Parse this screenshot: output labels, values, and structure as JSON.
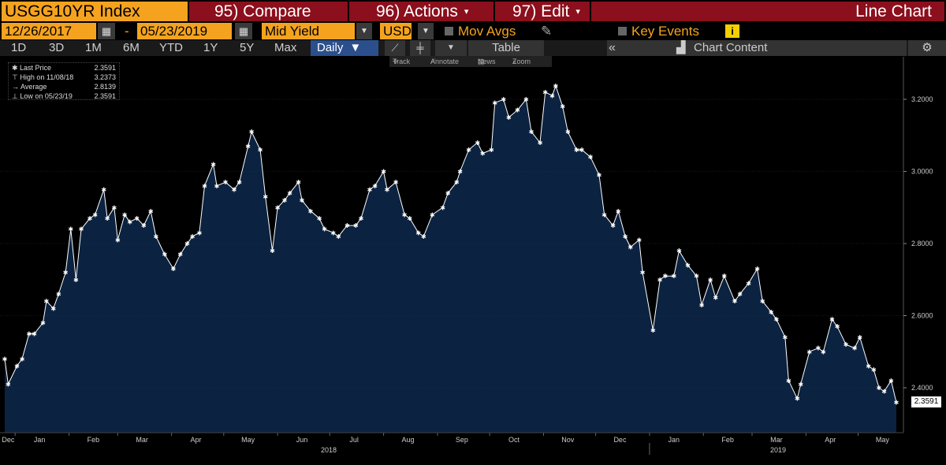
{
  "header": {
    "ticker": "USGG10YR Index",
    "compare_label": "95) Compare",
    "actions_label": "96) Actions",
    "edit_label": "97) Edit",
    "chart_type_label": "Line Chart"
  },
  "controls": {
    "start_date": "12/26/2017",
    "date_separator": "-",
    "end_date": "05/23/2019",
    "field": "Mid Yield",
    "currency": "USD",
    "mov_avgs_label": "Mov Avgs",
    "key_events_label": "Key Events",
    "info_icon_label": "i"
  },
  "periods": [
    "1D",
    "3D",
    "1M",
    "6M",
    "YTD",
    "1Y",
    "5Y",
    "Max"
  ],
  "frequency": "Daily",
  "toolbar": {
    "table_label": "Table",
    "chart_content_label": "Chart Content",
    "track_label": "Track",
    "annotate_label": "Annotate",
    "news_label": "News",
    "zoom_label": "Zoom"
  },
  "legend": {
    "last_price_label": "Last Price",
    "last_price_value": "2.3591",
    "high_label": "High on 11/08/18",
    "high_value": "3.2373",
    "average_label": "Average",
    "average_value": "2.8139",
    "low_label": "Low on 05/23/19",
    "low_value": "2.3591"
  },
  "last_price_tag": "2.3591",
  "colors": {
    "accent": "#f5a31f",
    "header_red": "#8b0f1c",
    "area_fill": "#0b2241",
    "line": "#ffffff"
  },
  "chart_data": {
    "type": "area",
    "title": "",
    "xlabel": "",
    "ylabel": "",
    "ylim": [
      2.3,
      3.3
    ],
    "y_ticks": [
      "2.4000",
      "2.6000",
      "2.8000",
      "3.0000",
      "3.2000"
    ],
    "x_tick_labels": [
      "Dec",
      "Jan",
      "Feb",
      "Mar",
      "Apr",
      "May",
      "Jun",
      "Jul",
      "Aug",
      "Sep",
      "Oct",
      "Nov",
      "Dec",
      "Jan",
      "Feb",
      "Mar",
      "Apr",
      "May"
    ],
    "year_labels": [
      "2018",
      "2019"
    ],
    "series": [
      {
        "values": [
          [
            "2017-12-26",
            2.48
          ],
          [
            "2017-12-28",
            2.41
          ],
          [
            "2018-01-02",
            2.46
          ],
          [
            "2018-01-05",
            2.48
          ],
          [
            "2018-01-09",
            2.55
          ],
          [
            "2018-01-12",
            2.55
          ],
          [
            "2018-01-17",
            2.58
          ],
          [
            "2018-01-19",
            2.64
          ],
          [
            "2018-01-23",
            2.62
          ],
          [
            "2018-01-26",
            2.66
          ],
          [
            "2018-01-30",
            2.72
          ],
          [
            "2018-02-02",
            2.84
          ],
          [
            "2018-02-05",
            2.7
          ],
          [
            "2018-02-08",
            2.84
          ],
          [
            "2018-02-13",
            2.87
          ],
          [
            "2018-02-16",
            2.88
          ],
          [
            "2018-02-21",
            2.95
          ],
          [
            "2018-02-23",
            2.87
          ],
          [
            "2018-02-27",
            2.9
          ],
          [
            "2018-03-01",
            2.81
          ],
          [
            "2018-03-05",
            2.88
          ],
          [
            "2018-03-08",
            2.86
          ],
          [
            "2018-03-12",
            2.87
          ],
          [
            "2018-03-16",
            2.85
          ],
          [
            "2018-03-20",
            2.89
          ],
          [
            "2018-03-23",
            2.82
          ],
          [
            "2018-03-28",
            2.77
          ],
          [
            "2018-04-02",
            2.73
          ],
          [
            "2018-04-06",
            2.77
          ],
          [
            "2018-04-10",
            2.8
          ],
          [
            "2018-04-13",
            2.82
          ],
          [
            "2018-04-17",
            2.83
          ],
          [
            "2018-04-20",
            2.96
          ],
          [
            "2018-04-25",
            3.02
          ],
          [
            "2018-04-27",
            2.96
          ],
          [
            "2018-05-02",
            2.97
          ],
          [
            "2018-05-07",
            2.95
          ],
          [
            "2018-05-10",
            2.97
          ],
          [
            "2018-05-15",
            3.07
          ],
          [
            "2018-05-17",
            3.11
          ],
          [
            "2018-05-22",
            3.06
          ],
          [
            "2018-05-25",
            2.93
          ],
          [
            "2018-05-29",
            2.78
          ],
          [
            "2018-06-01",
            2.9
          ],
          [
            "2018-06-05",
            2.92
          ],
          [
            "2018-06-08",
            2.94
          ],
          [
            "2018-06-13",
            2.97
          ],
          [
            "2018-06-15",
            2.92
          ],
          [
            "2018-06-20",
            2.89
          ],
          [
            "2018-06-25",
            2.87
          ],
          [
            "2018-06-28",
            2.84
          ],
          [
            "2018-07-03",
            2.83
          ],
          [
            "2018-07-06",
            2.82
          ],
          [
            "2018-07-11",
            2.85
          ],
          [
            "2018-07-16",
            2.85
          ],
          [
            "2018-07-19",
            2.87
          ],
          [
            "2018-07-24",
            2.95
          ],
          [
            "2018-07-27",
            2.96
          ],
          [
            "2018-08-01",
            3.0
          ],
          [
            "2018-08-03",
            2.95
          ],
          [
            "2018-08-08",
            2.97
          ],
          [
            "2018-08-13",
            2.88
          ],
          [
            "2018-08-16",
            2.87
          ],
          [
            "2018-08-21",
            2.83
          ],
          [
            "2018-08-24",
            2.82
          ],
          [
            "2018-08-29",
            2.88
          ],
          [
            "2018-09-04",
            2.9
          ],
          [
            "2018-09-07",
            2.94
          ],
          [
            "2018-09-12",
            2.97
          ],
          [
            "2018-09-14",
            3.0
          ],
          [
            "2018-09-19",
            3.06
          ],
          [
            "2018-09-24",
            3.08
          ],
          [
            "2018-09-27",
            3.05
          ],
          [
            "2018-10-02",
            3.06
          ],
          [
            "2018-10-04",
            3.19
          ],
          [
            "2018-10-09",
            3.2
          ],
          [
            "2018-10-12",
            3.15
          ],
          [
            "2018-10-17",
            3.17
          ],
          [
            "2018-10-22",
            3.2
          ],
          [
            "2018-10-25",
            3.11
          ],
          [
            "2018-10-30",
            3.08
          ],
          [
            "2018-11-02",
            3.22
          ],
          [
            "2018-11-06",
            3.21
          ],
          [
            "2018-11-08",
            3.2373
          ],
          [
            "2018-11-12",
            3.18
          ],
          [
            "2018-11-15",
            3.11
          ],
          [
            "2018-11-20",
            3.06
          ],
          [
            "2018-11-23",
            3.06
          ],
          [
            "2018-11-28",
            3.04
          ],
          [
            "2018-12-03",
            2.99
          ],
          [
            "2018-12-06",
            2.88
          ],
          [
            "2018-12-11",
            2.85
          ],
          [
            "2018-12-14",
            2.89
          ],
          [
            "2018-12-18",
            2.82
          ],
          [
            "2018-12-21",
            2.79
          ],
          [
            "2018-12-26",
            2.81
          ],
          [
            "2018-12-28",
            2.72
          ],
          [
            "2019-01-03",
            2.56
          ],
          [
            "2019-01-07",
            2.7
          ],
          [
            "2019-01-10",
            2.71
          ],
          [
            "2019-01-15",
            2.71
          ],
          [
            "2019-01-18",
            2.78
          ],
          [
            "2019-01-23",
            2.74
          ],
          [
            "2019-01-28",
            2.71
          ],
          [
            "2019-01-31",
            2.63
          ],
          [
            "2019-02-05",
            2.7
          ],
          [
            "2019-02-08",
            2.65
          ],
          [
            "2019-02-13",
            2.71
          ],
          [
            "2019-02-19",
            2.64
          ],
          [
            "2019-02-22",
            2.66
          ],
          [
            "2019-02-27",
            2.69
          ],
          [
            "2019-03-04",
            2.73
          ],
          [
            "2019-03-07",
            2.64
          ],
          [
            "2019-03-12",
            2.61
          ],
          [
            "2019-03-15",
            2.59
          ],
          [
            "2019-03-20",
            2.54
          ],
          [
            "2019-03-22",
            2.42
          ],
          [
            "2019-03-27",
            2.37
          ],
          [
            "2019-03-29",
            2.41
          ],
          [
            "2019-04-03",
            2.5
          ],
          [
            "2019-04-08",
            2.51
          ],
          [
            "2019-04-11",
            2.5
          ],
          [
            "2019-04-16",
            2.59
          ],
          [
            "2019-04-19",
            2.57
          ],
          [
            "2019-04-24",
            2.52
          ],
          [
            "2019-04-29",
            2.51
          ],
          [
            "2019-05-02",
            2.54
          ],
          [
            "2019-05-07",
            2.46
          ],
          [
            "2019-05-10",
            2.45
          ],
          [
            "2019-05-13",
            2.4
          ],
          [
            "2019-05-16",
            2.39
          ],
          [
            "2019-05-20",
            2.42
          ],
          [
            "2019-05-23",
            2.3591
          ]
        ]
      }
    ]
  }
}
